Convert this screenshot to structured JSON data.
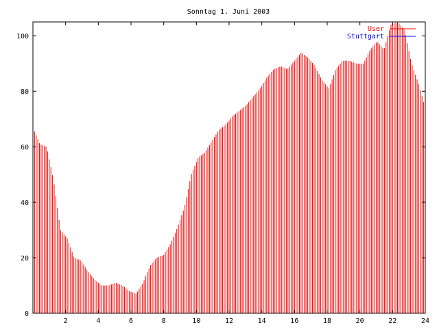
{
  "chart_data": {
    "type": "bar",
    "title": "Sonntag 1. Juni 2003",
    "xlabel": "",
    "ylabel": "",
    "xlim": [
      0,
      24
    ],
    "ylim": [
      0,
      105
    ],
    "x_ticks": [
      "2",
      "4",
      "6",
      "8",
      "10",
      "12",
      "14",
      "16",
      "18",
      "20",
      "22",
      "24"
    ],
    "y_ticks": [
      "0",
      "20",
      "40",
      "60",
      "80",
      "100"
    ],
    "grid": false,
    "legend_position": "top-right",
    "series": [
      {
        "name": "User",
        "color": "#ff0000",
        "interval_hours": 0.1,
        "hourly_values": [
          67,
          61,
          60,
          48,
          30,
          27,
          20,
          19,
          15,
          12,
          10,
          10,
          11,
          10,
          8,
          7,
          11,
          17,
          20,
          21,
          25,
          31,
          38,
          50,
          56,
          58,
          62,
          66,
          68,
          71,
          73,
          75,
          78,
          81,
          85,
          88,
          89,
          88,
          91,
          94,
          92,
          89,
          84,
          81,
          88,
          91,
          91,
          90,
          90,
          95,
          98,
          95,
          104,
          105,
          102,
          90,
          83,
          74
        ]
      },
      {
        "name": "Stuttgart",
        "color": "#0000ff",
        "values": []
      }
    ]
  }
}
